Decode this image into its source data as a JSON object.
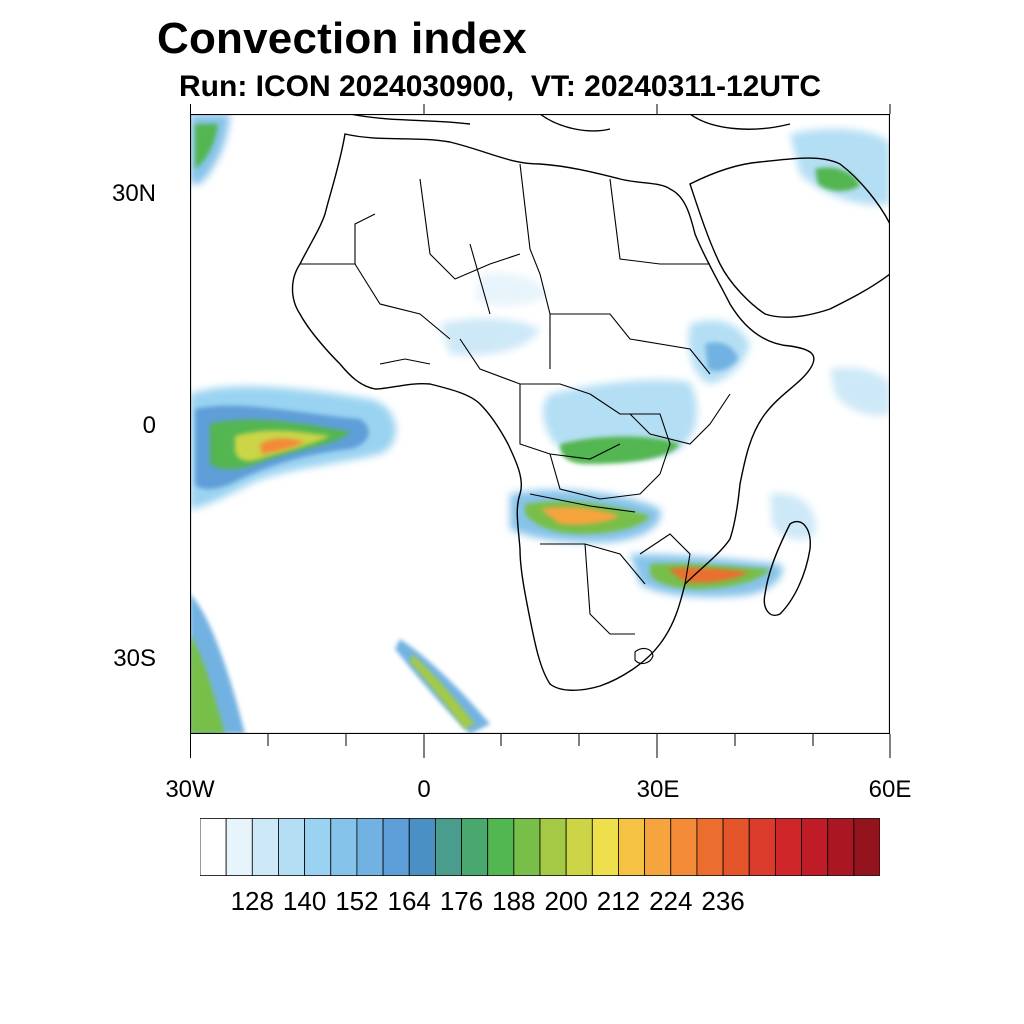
{
  "header": {
    "title": "Convection index",
    "subtitle": "Run: ICON 2024030900,  VT: 20240311-12UTC"
  },
  "axes": {
    "lat_labels": [
      "30N",
      "0",
      "30S"
    ],
    "lon_labels": [
      "30W",
      "0",
      "30E",
      "60E"
    ]
  },
  "colorbar": {
    "labels": [
      "128",
      "140",
      "152",
      "164",
      "176",
      "188",
      "200",
      "212",
      "224",
      "236"
    ],
    "colors": [
      "#ffffff",
      "#e8f4fb",
      "#cde8f7",
      "#b4def4",
      "#9ad3f1",
      "#86c3ea",
      "#72b2e2",
      "#5e9ed8",
      "#4b90c4",
      "#4a9c8c",
      "#48a86e",
      "#52b651",
      "#77bf48",
      "#a4ca45",
      "#cbd546",
      "#eedf4d",
      "#f6c244",
      "#f6a43e",
      "#f28a37",
      "#ec6e2f",
      "#e4552b",
      "#da3b2a",
      "#cf262a",
      "#bf1c27",
      "#aa1722",
      "#93141d"
    ]
  },
  "map": {
    "region": "Africa",
    "lon_range": [
      -30,
      60
    ],
    "lat_range": [
      -40,
      40
    ],
    "land_fill": "#ffffff",
    "border_color": "#000000"
  }
}
